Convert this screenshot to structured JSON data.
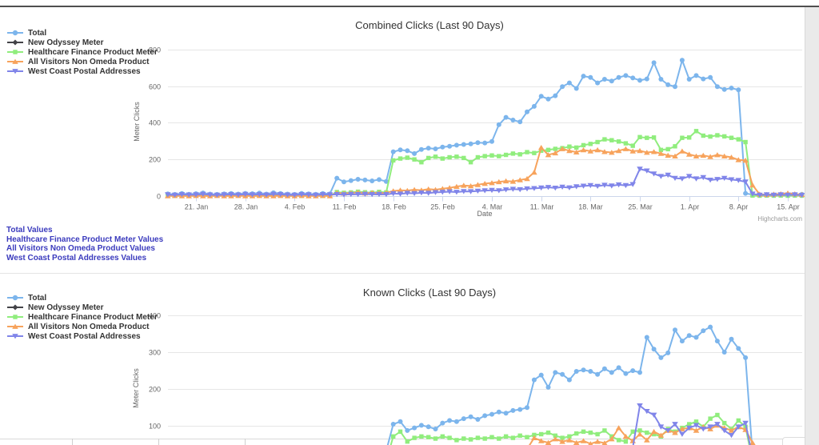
{
  "page": {
    "credit": "Highcharts.com",
    "link_color": "#3a3abd"
  },
  "links": {
    "items": [
      {
        "label": "Total Values"
      },
      {
        "label": "Healthcare Finance Product Meter Values"
      },
      {
        "label": "All Visitors Non Omeda Product Values"
      },
      {
        "label": "West Coast Postal Addresses Values"
      }
    ]
  },
  "chart_data": [
    {
      "type": "line",
      "title": "Combined Clicks (Last 90 Days)",
      "xlabel": "Date",
      "ylabel": "Meter Clicks",
      "credit": "Highcharts.com",
      "ylim": [
        0,
        874
      ],
      "yticks": [
        0,
        200,
        400,
        600,
        800
      ],
      "grid": true,
      "legend_position": "left",
      "x_start": "17. Jan",
      "xticks": [
        {
          "day": 4,
          "label": "21. Jan"
        },
        {
          "day": 11,
          "label": "28. Jan"
        },
        {
          "day": 18,
          "label": "4. Feb"
        },
        {
          "day": 25,
          "label": "11. Feb"
        },
        {
          "day": 32,
          "label": "18. Feb"
        },
        {
          "day": 39,
          "label": "25. Feb"
        },
        {
          "day": 46,
          "label": "4. Mar"
        },
        {
          "day": 53,
          "label": "11. Mar"
        },
        {
          "day": 60,
          "label": "18. Mar"
        },
        {
          "day": 67,
          "label": "25. Mar"
        },
        {
          "day": 74,
          "label": "1. Apr"
        },
        {
          "day": 81,
          "label": "8. Apr"
        },
        {
          "day": 88,
          "label": "15. Apr"
        }
      ],
      "series": [
        {
          "name": "Total",
          "color": "#7cb5ec",
          "marker": "circle",
          "values": [
            12,
            9,
            14,
            10,
            13,
            17,
            11,
            9,
            12,
            14,
            11,
            15,
            13,
            16,
            11,
            18,
            14,
            11,
            9,
            15,
            12,
            10,
            14,
            12,
            98,
            78,
            85,
            92,
            88,
            83,
            90,
            80,
            242,
            252,
            248,
            232,
            255,
            262,
            258,
            268,
            272,
            278,
            282,
            285,
            292,
            290,
            298,
            390,
            430,
            415,
            405,
            460,
            490,
            545,
            530,
            548,
            598,
            618,
            588,
            655,
            648,
            618,
            638,
            628,
            648,
            658,
            645,
            632,
            640,
            728,
            638,
            608,
            598,
            742,
            638,
            658,
            640,
            648,
            598,
            582,
            590,
            580,
            15,
            8,
            6,
            8,
            6,
            8,
            6,
            8,
            10
          ]
        },
        {
          "name": "New Odyssey Meter",
          "color": "#434348",
          "marker": "diamond",
          "values": []
        },
        {
          "name": "Healthcare Finance Product Meter",
          "color": "#90ed7d",
          "marker": "square",
          "values": [
            2,
            1,
            2,
            1,
            2,
            2,
            1,
            2,
            2,
            1,
            2,
            2,
            1,
            2,
            1,
            2,
            2,
            1,
            2,
            1,
            2,
            2,
            1,
            2,
            22,
            18,
            20,
            24,
            21,
            19,
            23,
            20,
            195,
            205,
            210,
            200,
            185,
            208,
            215,
            205,
            212,
            215,
            208,
            185,
            212,
            218,
            222,
            218,
            225,
            232,
            228,
            240,
            235,
            248,
            252,
            258,
            262,
            270,
            265,
            278,
            285,
            295,
            310,
            305,
            298,
            288,
            275,
            322,
            318,
            320,
            252,
            256,
            272,
            318,
            320,
            355,
            330,
            325,
            332,
            326,
            318,
            310,
            295,
            3,
            2,
            3,
            2,
            3,
            2,
            3,
            2
          ]
        },
        {
          "name": "All Visitors Non Omeda Product",
          "color": "#f7a35c",
          "marker": "triangle",
          "values": [
            1,
            2,
            1,
            1,
            2,
            1,
            1,
            2,
            1,
            1,
            2,
            1,
            1,
            2,
            1,
            1,
            2,
            1,
            1,
            2,
            1,
            1,
            2,
            1,
            18,
            15,
            17,
            20,
            16,
            19,
            17,
            18,
            28,
            32,
            30,
            35,
            32,
            38,
            35,
            40,
            45,
            52,
            58,
            55,
            62,
            68,
            72,
            78,
            82,
            80,
            88,
            95,
            130,
            265,
            225,
            235,
            258,
            248,
            240,
            252,
            245,
            252,
            242,
            238,
            248,
            258,
            245,
            248,
            238,
            242,
            232,
            222,
            218,
            245,
            228,
            218,
            222,
            215,
            225,
            218,
            212,
            198,
            195,
            60,
            10,
            8,
            10,
            12,
            16,
            12,
            8
          ]
        },
        {
          "name": "West Coast Postal Addresses",
          "color": "#8085e9",
          "marker": "triangle-down",
          "values": [
            8,
            6,
            9,
            7,
            8,
            11,
            7,
            6,
            8,
            9,
            7,
            10,
            8,
            9,
            7,
            11,
            9,
            7,
            6,
            9,
            8,
            6,
            9,
            8,
            9,
            8,
            10,
            9,
            11,
            9,
            10,
            9,
            14,
            12,
            16,
            15,
            18,
            16,
            20,
            22,
            24,
            22,
            26,
            25,
            28,
            30,
            32,
            30,
            35,
            38,
            36,
            40,
            42,
            45,
            48,
            44,
            50,
            46,
            52,
            55,
            58,
            54,
            60,
            56,
            62,
            58,
            64,
            148,
            138,
            122,
            108,
            115,
            98,
            95,
            108,
            95,
            102,
            88,
            92,
            98,
            90,
            86,
            78,
            12,
            6,
            8,
            6,
            8,
            6,
            8,
            5
          ]
        }
      ]
    },
    {
      "type": "line",
      "title": "Known Clicks (Last 90 Days)",
      "xlabel": "",
      "ylabel": "Meter Clicks",
      "ylim": [
        0,
        430
      ],
      "yticks": [
        100,
        200,
        300,
        400
      ],
      "grid": true,
      "legend_position": "left",
      "x_start": "17. Jan",
      "xticks": [],
      "series": [
        {
          "name": "Total",
          "color": "#7cb5ec",
          "marker": "circle",
          "values": [
            4,
            3,
            5,
            4,
            4,
            6,
            4,
            3,
            4,
            5,
            4,
            5,
            4,
            5,
            4,
            6,
            5,
            4,
            3,
            5,
            4,
            3,
            5,
            4,
            38,
            32,
            35,
            38,
            36,
            34,
            37,
            33,
            105,
            112,
            88,
            95,
            102,
            98,
            92,
            108,
            115,
            112,
            120,
            125,
            118,
            128,
            132,
            138,
            135,
            142,
            145,
            150,
            225,
            238,
            205,
            245,
            240,
            225,
            248,
            252,
            248,
            240,
            255,
            245,
            258,
            242,
            250,
            245,
            340,
            308,
            285,
            298,
            360,
            330,
            345,
            340,
            358,
            368,
            330,
            300,
            335,
            310,
            285,
            25,
            8,
            6,
            8,
            6,
            8,
            6,
            8
          ]
        },
        {
          "name": "New Odyssey Meter",
          "color": "#434348",
          "marker": "diamond",
          "values": []
        },
        {
          "name": "Healthcare Finance Product Meter",
          "color": "#90ed7d",
          "marker": "square",
          "values": [
            2,
            2,
            2,
            2,
            2,
            2,
            2,
            2,
            2,
            2,
            2,
            2,
            2,
            2,
            2,
            2,
            2,
            2,
            2,
            2,
            2,
            2,
            2,
            2,
            5,
            4,
            6,
            5,
            6,
            5,
            6,
            5,
            72,
            85,
            58,
            68,
            72,
            70,
            66,
            72,
            68,
            62,
            66,
            64,
            68,
            66,
            70,
            66,
            72,
            68,
            74,
            70,
            76,
            78,
            82,
            74,
            68,
            72,
            80,
            85,
            82,
            78,
            88,
            72,
            62,
            58,
            85,
            88,
            82,
            78,
            72,
            92,
            85,
            95,
            105,
            112,
            98,
            120,
            130,
            108,
            92,
            115,
            98,
            5,
            2,
            2,
            2,
            2,
            2,
            2,
            2
          ]
        },
        {
          "name": "All Visitors Non Omeda Product",
          "color": "#f7a35c",
          "marker": "triangle",
          "values": [
            1,
            1,
            1,
            1,
            1,
            1,
            1,
            1,
            1,
            1,
            1,
            1,
            1,
            1,
            1,
            1,
            1,
            1,
            1,
            1,
            1,
            1,
            1,
            1,
            4,
            3,
            4,
            5,
            4,
            4,
            5,
            4,
            12,
            14,
            12,
            15,
            13,
            16,
            14,
            16,
            18,
            20,
            22,
            20,
            24,
            26,
            28,
            30,
            32,
            30,
            35,
            38,
            68,
            60,
            55,
            65,
            58,
            62,
            55,
            60,
            52,
            58,
            54,
            65,
            95,
            72,
            60,
            78,
            62,
            85,
            75,
            88,
            82,
            92,
            95,
            88,
            98,
            92,
            102,
            95,
            88,
            98,
            90,
            55,
            10,
            8,
            10,
            12,
            15,
            12,
            8
          ]
        },
        {
          "name": "West Coast Postal Addresses",
          "color": "#8085e9",
          "marker": "triangle-down",
          "values": [
            3,
            3,
            3,
            3,
            3,
            3,
            3,
            3,
            3,
            3,
            3,
            3,
            3,
            3,
            3,
            3,
            3,
            3,
            3,
            3,
            3,
            3,
            3,
            3,
            5,
            4,
            5,
            6,
            5,
            5,
            6,
            5,
            8,
            7,
            9,
            8,
            10,
            9,
            11,
            10,
            12,
            11,
            13,
            12,
            14,
            15,
            16,
            15,
            18,
            17,
            20,
            22,
            25,
            28,
            26,
            30,
            28,
            32,
            30,
            34,
            32,
            36,
            34,
            38,
            36,
            40,
            42,
            155,
            140,
            130,
            98,
            88,
            105,
            78,
            95,
            102,
            92,
            98,
            105,
            88,
            75,
            98,
            108,
            15,
            5,
            4,
            5,
            4,
            5,
            4,
            5
          ]
        }
      ]
    }
  ]
}
